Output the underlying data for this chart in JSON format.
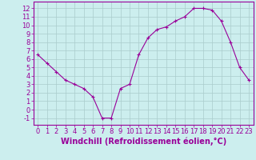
{
  "x": [
    0,
    1,
    2,
    3,
    4,
    5,
    6,
    7,
    8,
    9,
    10,
    11,
    12,
    13,
    14,
    15,
    16,
    17,
    18,
    19,
    20,
    21,
    22,
    23
  ],
  "y": [
    6.5,
    5.5,
    4.5,
    3.5,
    3.0,
    2.5,
    1.5,
    -1.0,
    -1.0,
    2.5,
    3.0,
    6.5,
    8.5,
    9.5,
    9.8,
    10.5,
    11.0,
    12.0,
    12.0,
    11.8,
    10.5,
    8.0,
    5.0,
    3.5
  ],
  "line_color": "#990099",
  "marker": "+",
  "marker_size": 3,
  "bg_color": "#cceeee",
  "grid_color": "#aacccc",
  "xlabel": "Windchill (Refroidissement éolien,°C)",
  "xlabel_color": "#990099",
  "xlabel_fontsize": 7,
  "tick_color": "#990099",
  "tick_fontsize": 6,
  "ylim": [
    -1.8,
    12.8
  ],
  "xlim": [
    -0.5,
    23.5
  ],
  "yticks": [
    -1,
    0,
    1,
    2,
    3,
    4,
    5,
    6,
    7,
    8,
    9,
    10,
    11,
    12
  ],
  "xticks": [
    0,
    1,
    2,
    3,
    4,
    5,
    6,
    7,
    8,
    9,
    10,
    11,
    12,
    13,
    14,
    15,
    16,
    17,
    18,
    19,
    20,
    21,
    22,
    23
  ]
}
